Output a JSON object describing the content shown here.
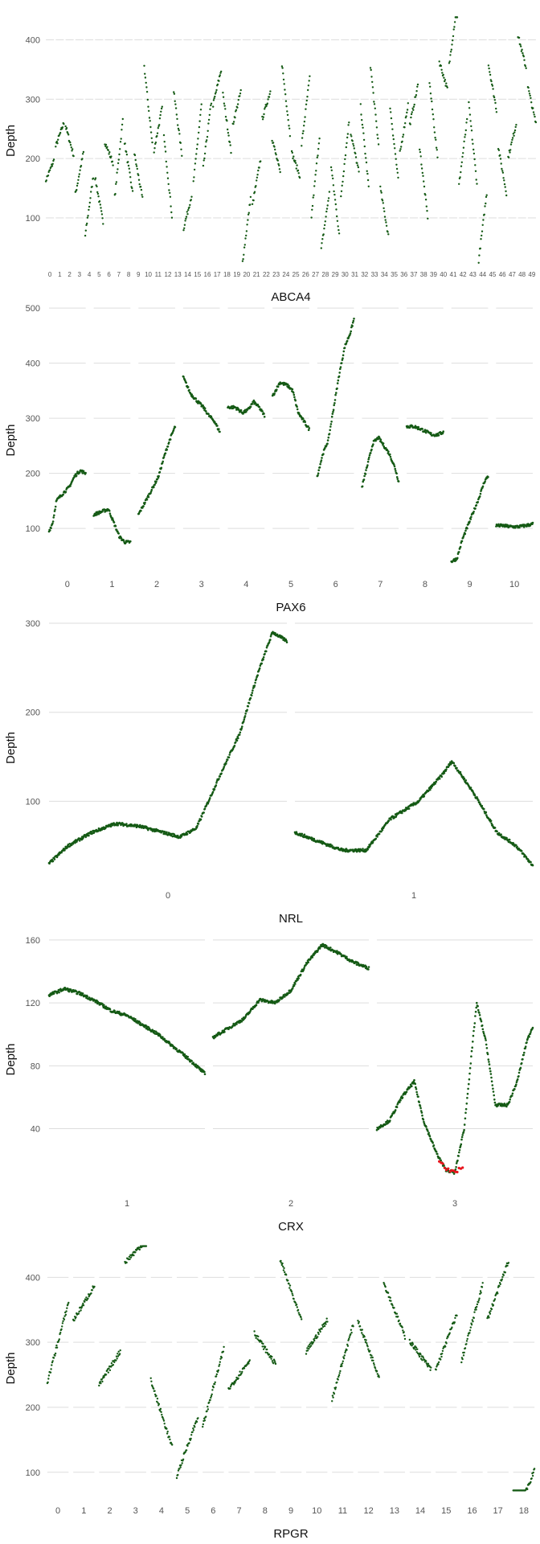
{
  "chart_data": [
    {
      "type": "scatter",
      "xlabel": "ABCA4",
      "ylabel": "Depth",
      "yticks": [
        100,
        200,
        300,
        400
      ],
      "ylim": [
        20,
        440
      ],
      "segments": [
        "0",
        "1",
        "2",
        "3",
        "4",
        "5",
        "6",
        "7",
        "8",
        "9",
        "10",
        "11",
        "12",
        "13",
        "14",
        "15",
        "16",
        "17",
        "18",
        "19",
        "20",
        "21",
        "22",
        "23",
        "24",
        "25",
        "26",
        "27",
        "28",
        "29",
        "30",
        "31",
        "32",
        "33",
        "34",
        "35",
        "36",
        "37",
        "38",
        "39",
        "40",
        "41",
        "42",
        "43",
        "44",
        "45",
        "46",
        "47",
        "48",
        "49"
      ],
      "panel_depth_profile": [
        180,
        240,
        230,
        175,
        120,
        130,
        210,
        200,
        185,
        170,
        290,
        250,
        170,
        260,
        110,
        225,
        240,
        320,
        260,
        285,
        80,
        160,
        290,
        205,
        300,
        190,
        280,
        170,
        95,
        130,
        200,
        210,
        220,
        290,
        110,
        225,
        250,
        290,
        160,
        265,
        340,
        410,
        210,
        225,
        85,
        320,
        180,
        230,
        380,
        290
      ],
      "colors": {
        "point": "#155a15",
        "grid": "#dddddd"
      }
    },
    {
      "type": "scatter",
      "xlabel": "PAX6",
      "ylabel": "Depth",
      "yticks": [
        100,
        200,
        300,
        400,
        500
      ],
      "ylim": [
        30,
        490
      ],
      "segments": [
        "0",
        "1",
        "2",
        "3",
        "4",
        "5",
        "6",
        "7",
        "8",
        "9",
        "10"
      ],
      "series": [
        {
          "segment": "0",
          "x": [
            0.0,
            0.1,
            0.2,
            0.4,
            0.55,
            0.7,
            0.85,
            1.0
          ],
          "y": [
            95,
            110,
            150,
            165,
            175,
            195,
            205,
            200
          ]
        },
        {
          "segment": "1",
          "x": [
            0.0,
            0.2,
            0.4,
            0.55,
            0.7,
            0.85,
            1.0
          ],
          "y": [
            125,
            130,
            135,
            110,
            85,
            75,
            75
          ]
        },
        {
          "segment": "2",
          "x": [
            0.0,
            0.2,
            0.4,
            0.55,
            0.7,
            0.85,
            1.0
          ],
          "y": [
            125,
            150,
            175,
            195,
            230,
            260,
            285
          ]
        },
        {
          "segment": "3",
          "x": [
            0.0,
            0.2,
            0.4,
            0.55,
            0.7,
            0.85,
            1.0
          ],
          "y": [
            375,
            345,
            330,
            320,
            305,
            295,
            275
          ]
        },
        {
          "segment": "4",
          "x": [
            0.0,
            0.2,
            0.4,
            0.55,
            0.7,
            0.85,
            1.0
          ],
          "y": [
            320,
            320,
            310,
            315,
            330,
            320,
            305
          ]
        },
        {
          "segment": "5",
          "x": [
            0.0,
            0.2,
            0.4,
            0.55,
            0.7,
            0.85,
            1.0
          ],
          "y": [
            340,
            365,
            360,
            350,
            310,
            295,
            280
          ]
        },
        {
          "segment": "6",
          "x": [
            0.0,
            0.15,
            0.3,
            0.45,
            0.6,
            0.75,
            0.9,
            1.0
          ],
          "y": [
            195,
            235,
            260,
            320,
            380,
            430,
            455,
            480
          ]
        },
        {
          "segment": "7",
          "x": [
            0.0,
            0.15,
            0.3,
            0.45,
            0.6,
            0.75,
            0.9,
            1.0
          ],
          "y": [
            175,
            215,
            255,
            265,
            250,
            235,
            210,
            185
          ]
        },
        {
          "segment": "8",
          "x": [
            0.0,
            0.2,
            0.4,
            0.55,
            0.7,
            0.85,
            1.0
          ],
          "y": [
            285,
            285,
            280,
            275,
            270,
            270,
            275
          ]
        },
        {
          "segment": "9",
          "x": [
            0.0,
            0.15,
            0.3,
            0.45,
            0.6,
            0.75,
            0.9,
            1.0
          ],
          "y": [
            40,
            45,
            80,
            105,
            130,
            155,
            185,
            195
          ]
        },
        {
          "segment": "10",
          "x": [
            0.0,
            0.2,
            0.4,
            0.6,
            0.8,
            1.0
          ],
          "y": [
            105,
            105,
            103,
            103,
            105,
            108
          ]
        }
      ],
      "colors": {
        "point": "#155a15",
        "grid": "#dddddd"
      }
    },
    {
      "type": "scatter",
      "xlabel": "NRL",
      "ylabel": "Depth",
      "yticks": [
        100,
        200,
        300
      ],
      "ylim": [
        20,
        300
      ],
      "segments": [
        "0",
        "1"
      ],
      "series": [
        {
          "segment": "0",
          "x": [
            0.0,
            0.08,
            0.18,
            0.28,
            0.38,
            0.48,
            0.55,
            0.62,
            0.72,
            0.8,
            0.88,
            0.94,
            1.0
          ],
          "y": [
            30,
            50,
            65,
            75,
            72,
            65,
            60,
            70,
            130,
            175,
            245,
            290,
            280
          ]
        },
        {
          "segment": "1",
          "x": [
            0.0,
            0.1,
            0.2,
            0.3,
            0.4,
            0.52,
            0.62,
            0.66,
            0.75,
            0.85,
            0.93,
            1.0
          ],
          "y": [
            65,
            55,
            45,
            45,
            80,
            100,
            130,
            145,
            110,
            65,
            50,
            28
          ]
        }
      ],
      "colors": {
        "point": "#155a15",
        "grid": "#dddddd"
      }
    },
    {
      "type": "scatter",
      "xlabel": "CRX",
      "ylabel": "Depth",
      "yticks": [
        40,
        80,
        120,
        160
      ],
      "ylim": [
        6,
        162
      ],
      "segments": [
        "1",
        "2",
        "3"
      ],
      "series": [
        {
          "segment": "1",
          "x": [
            0.0,
            0.1,
            0.2,
            0.3,
            0.4,
            0.5,
            0.6,
            0.7,
            0.8,
            0.9,
            1.0
          ],
          "y": [
            125,
            129,
            126,
            121,
            115,
            112,
            106,
            100,
            92,
            84,
            75
          ]
        },
        {
          "segment": "2",
          "x": [
            0.0,
            0.1,
            0.2,
            0.3,
            0.4,
            0.5,
            0.6,
            0.7,
            0.8,
            0.9,
            1.0
          ],
          "y": [
            98,
            104,
            110,
            122,
            120,
            128,
            145,
            157,
            152,
            146,
            142
          ]
        },
        {
          "segment": "3",
          "x": [
            0.0,
            0.08,
            0.16,
            0.24,
            0.3,
            0.38,
            0.44,
            0.5,
            0.56,
            0.64,
            0.7,
            0.76,
            0.84,
            0.9,
            0.96,
            1.0
          ],
          "y": [
            40,
            45,
            60,
            70,
            45,
            25,
            14,
            12,
            40,
            120,
            95,
            55,
            55,
            70,
            95,
            105
          ]
        }
      ],
      "low_coverage": {
        "segment": "3",
        "x": [
          0.4,
          0.45,
          0.5,
          0.55
        ],
        "y": [
          20,
          14,
          12,
          16
        ]
      },
      "colors": {
        "point": "#155a15",
        "low": "#e8141c",
        "grid": "#dddddd"
      }
    },
    {
      "type": "scatter",
      "xlabel": "RPGR",
      "ylabel": "Depth",
      "yticks": [
        100,
        200,
        300,
        400
      ],
      "ylim": [
        70,
        450
      ],
      "segments": [
        "0",
        "1",
        "2",
        "3",
        "4",
        "5",
        "6",
        "7",
        "8",
        "9",
        "10",
        "11",
        "12",
        "13",
        "14",
        "15",
        "16",
        "17",
        "18"
      ],
      "panel_depth_profile": [
        300,
        360,
        260,
        440,
        190,
        140,
        230,
        250,
        290,
        380,
        310,
        270,
        290,
        350,
        280,
        300,
        330,
        380,
        62
      ],
      "colors": {
        "point": "#155a15",
        "grid": "#dddddd"
      }
    }
  ]
}
